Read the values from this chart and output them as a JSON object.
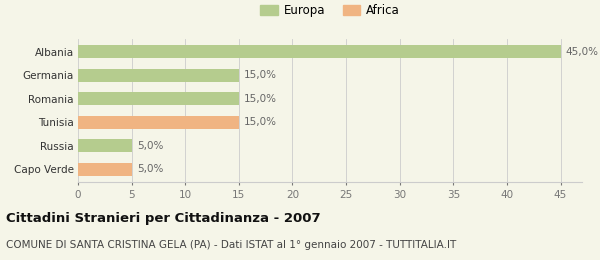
{
  "categories": [
    "Albania",
    "Germania",
    "Romania",
    "Tunisia",
    "Russia",
    "Capo Verde"
  ],
  "values": [
    45.0,
    15.0,
    15.0,
    15.0,
    5.0,
    5.0
  ],
  "colors": [
    "#b5cc8e",
    "#b5cc8e",
    "#b5cc8e",
    "#f0b482",
    "#b5cc8e",
    "#f0b482"
  ],
  "labels": [
    "45,0%",
    "15,0%",
    "15,0%",
    "15,0%",
    "5,0%",
    "5,0%"
  ],
  "xlim": [
    0,
    47
  ],
  "xticks": [
    0,
    5,
    10,
    15,
    20,
    25,
    30,
    35,
    40,
    45
  ],
  "title": "Cittadini Stranieri per Cittadinanza - 2007",
  "subtitle": "COMUNE DI SANTA CRISTINA GELA (PA) - Dati ISTAT al 1° gennaio 2007 - TUTTITALIA.IT",
  "legend_europa_color": "#b5cc8e",
  "legend_africa_color": "#f0b482",
  "background_color": "#f5f5e8",
  "bar_edge_color": "none",
  "grid_color": "#cccccc",
  "title_fontsize": 9.5,
  "subtitle_fontsize": 7.5,
  "label_fontsize": 7.5,
  "tick_fontsize": 7.5,
  "legend_fontsize": 8.5
}
